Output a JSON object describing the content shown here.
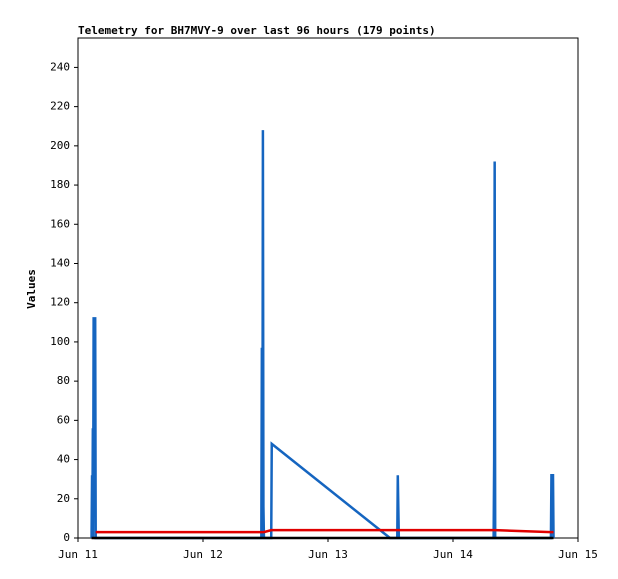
{
  "chart_data": {
    "type": "line",
    "title": "Telemetry for BH7MVY-9 over last 96 hours (179 points)",
    "y_label": "Values",
    "x": [
      2.6,
      2.7,
      2.75,
      2.85,
      2.9,
      3.0,
      3.3,
      3.4,
      35.2,
      35.3,
      35.4,
      35.5,
      35.6,
      35.7,
      37.1,
      37.2,
      59.9,
      61.3,
      61.4,
      61.5,
      61.6,
      79.8,
      79.9,
      80.0,
      80.1,
      90.8,
      90.9,
      91.2,
      91.3
    ],
    "series": [
      {
        "color": "#1565c0",
        "values": [
          0,
          32,
          0,
          56,
          0,
          112,
          112,
          0,
          0,
          97,
          0,
          208,
          16,
          0,
          0,
          48,
          0,
          0,
          32,
          16,
          0,
          0,
          40,
          192,
          0,
          0,
          32,
          32,
          0
        ]
      },
      {
        "color": "#e00000",
        "values": [
          null,
          null,
          null,
          null,
          null,
          null,
          null,
          3,
          3,
          3,
          3,
          3,
          3,
          3,
          4,
          4,
          4,
          4,
          4,
          4,
          4,
          4,
          4,
          4,
          4,
          3,
          3,
          3,
          3
        ]
      },
      {
        "color": "#000000",
        "values": [
          0,
          0,
          0,
          0,
          0,
          0,
          0,
          0,
          0,
          0,
          0,
          0,
          0,
          0,
          0,
          0,
          0,
          0,
          0,
          0,
          0,
          0,
          0,
          0,
          0,
          0,
          0,
          0,
          0
        ]
      }
    ],
    "xlim": [
      0,
      96
    ],
    "xticks": [
      {
        "value": 0,
        "label": "Jun 11"
      },
      {
        "value": 24,
        "label": "Jun 12"
      },
      {
        "value": 48,
        "label": "Jun 13"
      },
      {
        "value": 72,
        "label": "Jun 14"
      },
      {
        "value": 96,
        "label": "Jun 15"
      }
    ],
    "ylim": [
      0,
      255
    ],
    "yticks": [
      0,
      20,
      40,
      60,
      80,
      100,
      120,
      140,
      160,
      180,
      200,
      220,
      240
    ]
  }
}
